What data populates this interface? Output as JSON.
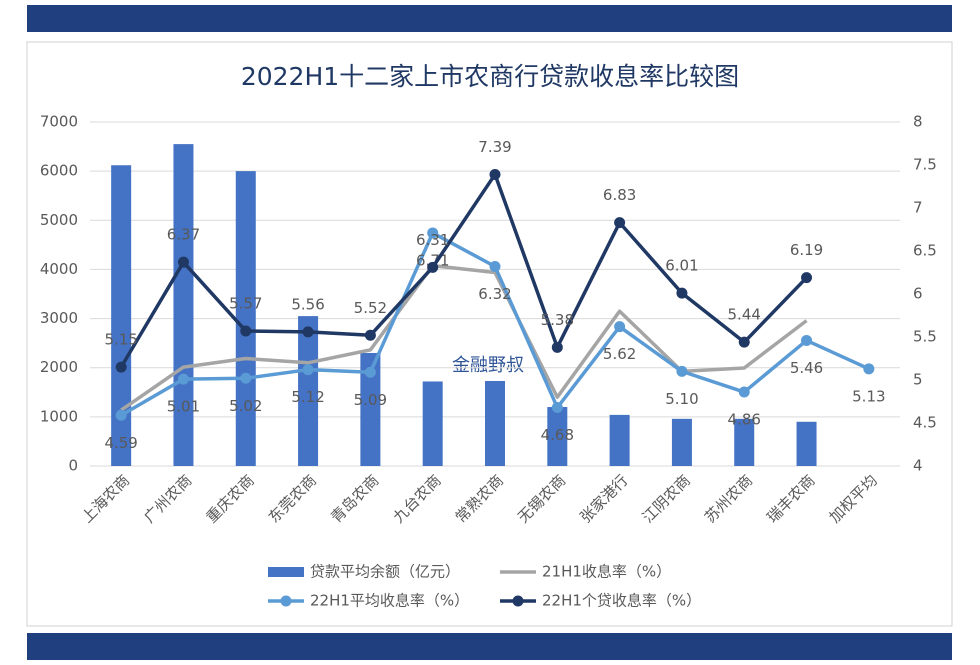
{
  "chart_data": {
    "type": "bar-line",
    "title": "2022H1十二家上市农商行贷款收息率比较图",
    "annotation": "金融野叔",
    "categories": [
      "上海农商",
      "广州农商",
      "重庆农商",
      "东莞农商",
      "青岛农商",
      "九台农商",
      "常熟农商",
      "无锡农商",
      "张家港行",
      "江阴农商",
      "苏州农商",
      "瑞丰农商",
      "加权平均"
    ],
    "series": [
      {
        "name": "贷款平均余额（亿元）",
        "kind": "bar",
        "color": "#4472c4",
        "values": [
          6120,
          6550,
          6000,
          3050,
          2300,
          1720,
          1730,
          1200,
          1040,
          960,
          960,
          900,
          null
        ]
      },
      {
        "name": "21H1收息率（%）",
        "kind": "line",
        "axis": "y2",
        "color": "#a5a5a5",
        "markers": false,
        "values": [
          4.65,
          5.15,
          5.25,
          5.2,
          5.35,
          6.33,
          6.25,
          4.8,
          5.8,
          5.1,
          5.14,
          5.69,
          null
        ]
      },
      {
        "name": "22H1平均收息率（%）",
        "kind": "line",
        "axis": "y2",
        "color": "#5b9bd5",
        "markers": true,
        "label_pos": "below",
        "values": [
          4.59,
          5.01,
          5.02,
          5.12,
          5.09,
          6.71,
          6.32,
          4.68,
          5.62,
          5.1,
          4.86,
          5.46,
          5.13
        ],
        "value_labels": [
          "4.59",
          "5.01",
          "5.02",
          "5.12",
          "5.09",
          "6.71",
          "6.32",
          "4.68",
          "5.62",
          "5.10",
          "4.86",
          "5.46",
          "5.13"
        ]
      },
      {
        "name": "22H1个贷收息率（%）",
        "kind": "line",
        "axis": "y2",
        "color": "#203864",
        "markers": true,
        "label_pos": "above",
        "values": [
          5.15,
          6.37,
          5.57,
          5.56,
          5.52,
          6.31,
          7.39,
          5.38,
          6.83,
          6.01,
          5.44,
          6.19,
          null
        ],
        "value_labels": [
          "5.15",
          "6.37",
          "5.57",
          "5.56",
          "5.52",
          "6.31",
          "7.39",
          "5.38",
          "6.83",
          "6.01",
          "5.44",
          "6.19",
          null
        ]
      }
    ],
    "ylim": [
      0,
      7000
    ],
    "yticks": [
      0,
      1000,
      2000,
      3000,
      4000,
      5000,
      6000,
      7000
    ],
    "y2lim": [
      4,
      8
    ],
    "y2ticks": [
      4,
      4.5,
      5,
      5.5,
      6,
      6.5,
      7,
      7.5,
      8
    ]
  }
}
